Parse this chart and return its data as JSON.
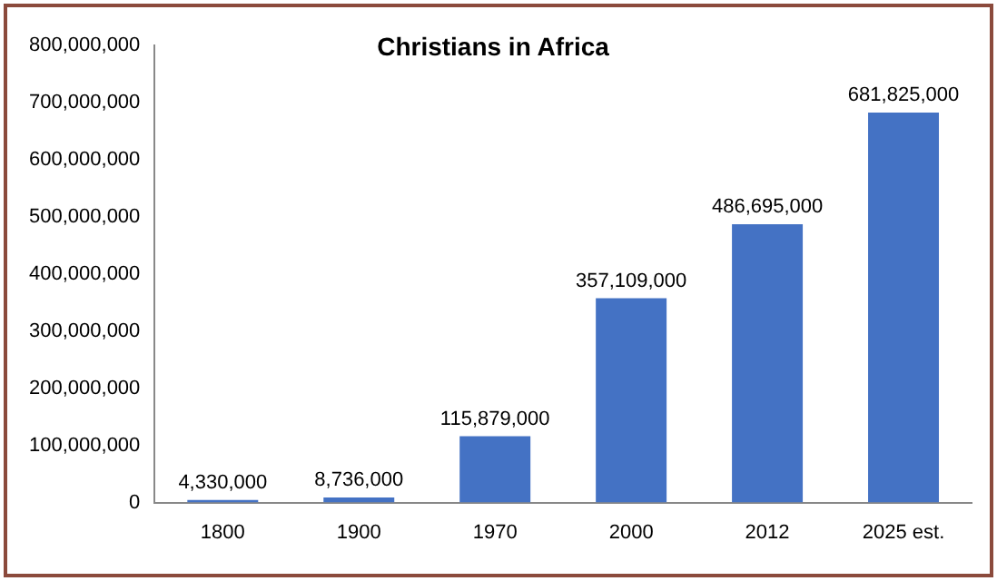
{
  "chart_data": {
    "type": "bar",
    "title": "Christians in Africa",
    "categories": [
      "1800",
      "1900",
      "1970",
      "2000",
      "2012",
      "2025 est."
    ],
    "values": [
      4330000,
      8736000,
      115879000,
      357109000,
      486695000,
      681825000
    ],
    "value_labels": [
      "4,330,000",
      "8,736,000",
      "115,879,000",
      "357,109,000",
      "486,695,000",
      "681,825,000"
    ],
    "color": "#4472c4",
    "ylim": [
      0,
      800000000
    ],
    "yticks": [
      {
        "value": 0,
        "label": "0"
      },
      {
        "value": 100000000,
        "label": "100,000,000"
      },
      {
        "value": 200000000,
        "label": "200,000,000"
      },
      {
        "value": 300000000,
        "label": "300,000,000"
      },
      {
        "value": 400000000,
        "label": "400,000,000"
      },
      {
        "value": 500000000,
        "label": "500,000,000"
      },
      {
        "value": 600000000,
        "label": "600,000,000"
      },
      {
        "value": 700000000,
        "label": "700,000,000"
      },
      {
        "value": 800000000,
        "label": "800,000,000"
      }
    ],
    "grid": false,
    "legend": false
  }
}
